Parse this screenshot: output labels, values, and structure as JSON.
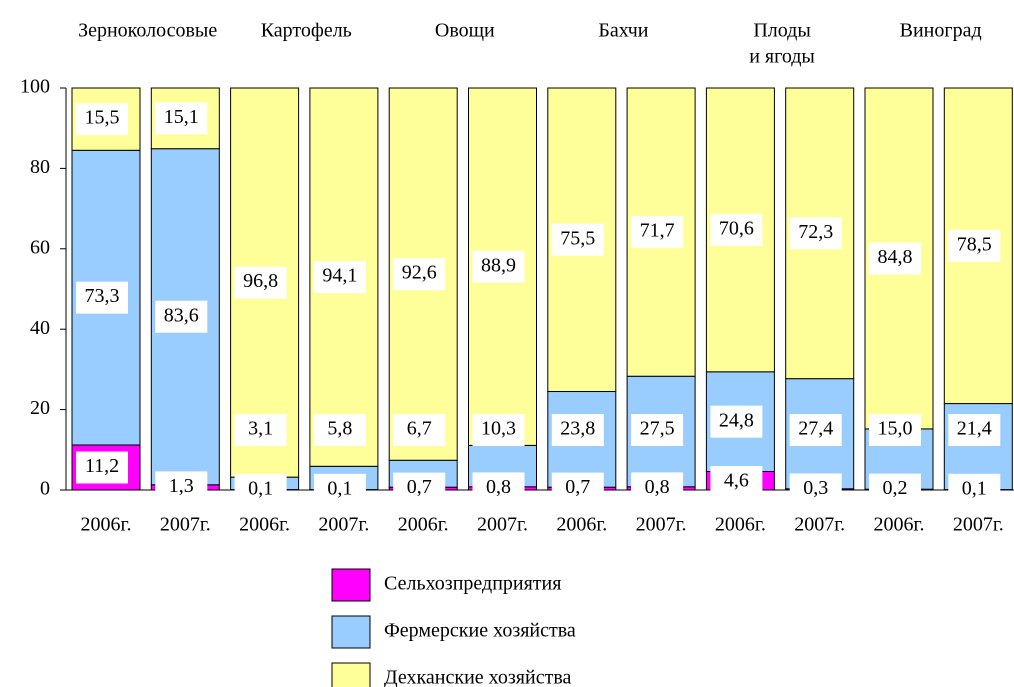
{
  "chart_data": {
    "type": "stacked_bar",
    "groups": [
      [
        "Зерноколосовые"
      ],
      [
        "Картофель"
      ],
      [
        "Овощи"
      ],
      [
        "Бахчи"
      ],
      [
        "Плоды",
        "и ягоды"
      ],
      [
        "Виноград"
      ]
    ],
    "categories": [
      "2006г.",
      "2007г.",
      "2006г.",
      "2007г.",
      "2006г.",
      "2007г.",
      "2006г.",
      "2007г.",
      "2006г.",
      "2007г.",
      "2006г.",
      "2007г."
    ],
    "series": [
      {
        "name": "Сельхозпредприятия",
        "color": "#ff00ff",
        "values": [
          11.2,
          1.3,
          0.1,
          0.1,
          0.7,
          0.8,
          0.7,
          0.8,
          4.6,
          0.3,
          0.2,
          0.1
        ],
        "value_labels": [
          "11,2",
          "1,3",
          "0,1",
          "0,1",
          "0,7",
          "0,8",
          "0,7",
          "0,8",
          "4,6",
          "0,3",
          "0,2",
          "0,1"
        ]
      },
      {
        "name": "Фермерские хозяйства",
        "color": "#99ccff",
        "values": [
          73.3,
          83.6,
          3.1,
          5.8,
          6.7,
          10.3,
          23.8,
          27.5,
          24.8,
          27.4,
          15.0,
          21.4
        ],
        "value_labels": [
          "73,3",
          "83,6",
          "3,1",
          "5,8",
          "6,7",
          "10,3",
          "23,8",
          "27,5",
          "24,8",
          "27,4",
          "15,0",
          "21,4"
        ]
      },
      {
        "name": "Дехканские хозяйства",
        "color": "#ffff99",
        "values": [
          15.5,
          15.1,
          96.8,
          94.1,
          92.6,
          88.9,
          75.5,
          71.7,
          70.6,
          72.3,
          84.8,
          78.5
        ],
        "value_labels": [
          "15,5",
          "15,1",
          "96,8",
          "94,1",
          "92,6",
          "88,9",
          "75,5",
          "71,7",
          "70,6",
          "72,3",
          "84,8",
          "78,5"
        ]
      }
    ],
    "ylim": [
      0,
      100
    ],
    "yticks": [
      0,
      20,
      40,
      60,
      80,
      100
    ]
  }
}
